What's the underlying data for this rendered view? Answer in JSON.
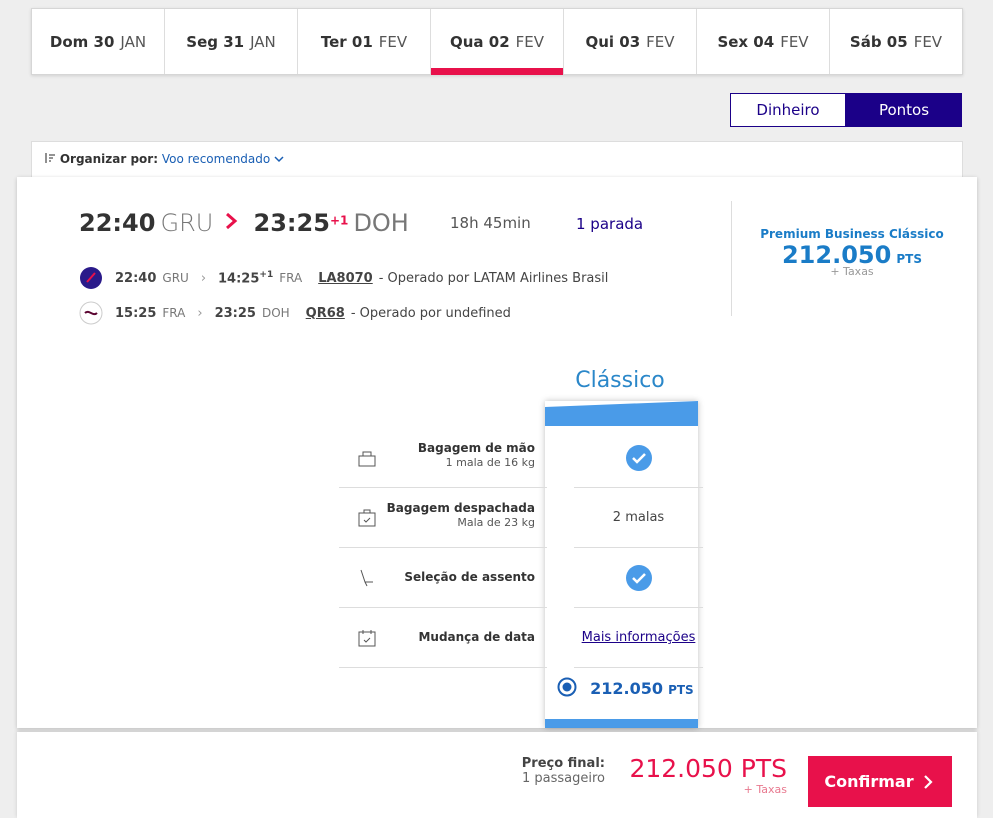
{
  "date_tabs": [
    {
      "day": "Dom 30",
      "month": "JAN"
    },
    {
      "day": "Seg 31",
      "month": "JAN"
    },
    {
      "day": "Ter 01",
      "month": "FEV"
    },
    {
      "day": "Qua 02",
      "month": "FEV"
    },
    {
      "day": "Qui 03",
      "month": "FEV"
    },
    {
      "day": "Sex 04",
      "month": "FEV"
    },
    {
      "day": "Sáb 05",
      "month": "FEV"
    }
  ],
  "currency_toggle": [
    "Dinheiro",
    "Pontos"
  ],
  "sort": {
    "label": "Organizar por:",
    "value": "Voo recomendado"
  },
  "flight": {
    "dep_time": "22:40",
    "dep_airport": "GRU",
    "arr_time": "23:25",
    "day_offset": "+1",
    "arr_airport": "DOH",
    "duration": "18h 45min",
    "stops": "1 parada",
    "segments": [
      {
        "dep_time": "22:40",
        "dep_airport": "GRU",
        "arr_time": "14:25",
        "day_offset": "+1",
        "arr_airport": "FRA",
        "flight": "LA8070",
        "operator": "- Operado por LATAM Airlines Brasil"
      },
      {
        "dep_time": "15:25",
        "dep_airport": "FRA",
        "arr_time": "23:25",
        "arr_airport": "DOH",
        "flight": "QR68",
        "operator": "- Operado por undefined"
      }
    ]
  },
  "fare_summary": {
    "name": "Premium Business Clássico",
    "price": "212.050",
    "unit": "PTS",
    "taxes": "+ Taxas"
  },
  "fare_column": {
    "title": "Clássico",
    "price": "212.050",
    "unit": "PTS"
  },
  "benefits": [
    {
      "title": "Bagagem de mão",
      "detail": "1 mala de 16 kg"
    },
    {
      "title": "Bagagem despachada",
      "detail": "Mala de 23 kg",
      "value": "2 malas"
    },
    {
      "title": "Seleção de assento"
    },
    {
      "title": "Mudança de data",
      "value": "Mais informações"
    }
  ],
  "footer": {
    "label": "Preço final:",
    "passengers": "1 passageiro",
    "price": "212.050 PTS",
    "taxes": "+ Taxas",
    "button": "Confirmar"
  }
}
